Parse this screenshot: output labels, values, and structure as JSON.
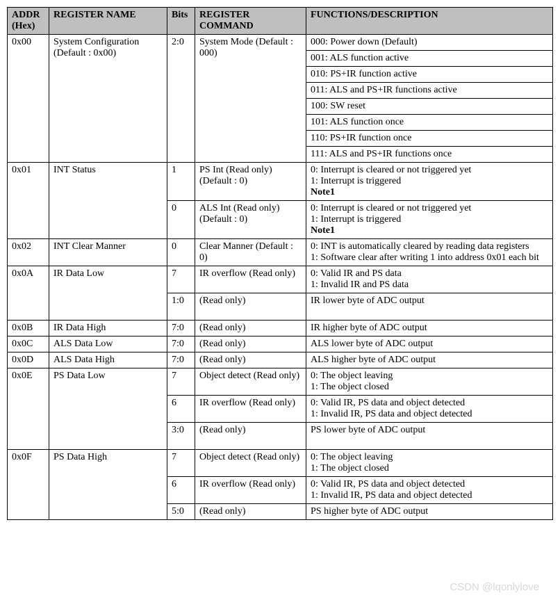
{
  "header": {
    "addr": "ADDR (Hex)",
    "name": "REGISTER NAME",
    "bits": "Bits",
    "cmd": "REGISTER COMMAND",
    "desc": "FUNCTIONS/DESCRIPTION"
  },
  "r00": {
    "addr": "0x00",
    "name": "System Configuration (Default : 0x00)",
    "bits": "2:0",
    "cmd": "System Mode (Default : 000)",
    "d0": "000: Power down (Default)",
    "d1": "001: ALS function active",
    "d2": "010: PS+IR function active",
    "d3": "011: ALS and PS+IR functions active",
    "d4": "100: SW reset",
    "d5": "101: ALS function once",
    "d6": "110: PS+IR function once",
    "d7": "111: ALS and PS+IR functions once"
  },
  "r01": {
    "addr": "0x01",
    "name": "INT Status",
    "b1_bits": "1",
    "b1_cmd": "PS Int (Read only) (Default : 0)",
    "b1_d0": "0: Interrupt is cleared or not triggered yet",
    "b1_d1": "1: Interrupt is triggered",
    "b1_note": "Note1",
    "b0_bits": "0",
    "b0_cmd": "ALS Int (Read only) (Default : 0)",
    "b0_d0": "0: Interrupt is cleared or not triggered yet",
    "b0_d1": "1: Interrupt is triggered",
    "b0_note": "Note1"
  },
  "r02": {
    "addr": "0x02",
    "name": "INT Clear Manner",
    "bits": "0",
    "cmd": "Clear Manner (Default : 0)",
    "d0": "0: INT is automatically cleared by reading data registers",
    "d1": "1: Software clear after writing 1 into address 0x01 each bit"
  },
  "r0a": {
    "addr": "0x0A",
    "name": "IR Data Low",
    "b7_bits": "7",
    "b7_cmd": "IR overflow (Read only)",
    "b7_d0": "0: Valid IR and PS data",
    "b7_d1": "1: Invalid IR and PS data",
    "b10_bits": "1:0",
    "b10_cmd": "(Read only)",
    "b10_desc": "IR lower byte of ADC output"
  },
  "r0b": {
    "addr": "0x0B",
    "name": "IR Data High",
    "bits": "7:0",
    "cmd": "(Read only)",
    "desc": "IR higher byte of ADC output"
  },
  "r0c": {
    "addr": "0x0C",
    "name": "ALS Data Low",
    "bits": "7:0",
    "cmd": "(Read only)",
    "desc": "ALS lower byte of ADC output"
  },
  "r0d": {
    "addr": "0x0D",
    "name": "ALS Data High",
    "bits": "7:0",
    "cmd": "(Read only)",
    "desc": "ALS higher byte of ADC output"
  },
  "r0e": {
    "addr": "0x0E",
    "name": "PS Data Low",
    "b7_bits": "7",
    "b7_cmd": "Object detect (Read only)",
    "b7_d0": "0: The object leaving",
    "b7_d1": "1: The object closed",
    "b6_bits": "6",
    "b6_cmd": "IR overflow (Read only)",
    "b6_d0": "0: Valid IR, PS data and object detected",
    "b6_d1": "1: Invalid IR, PS data and object detected",
    "b30_bits": "3:0",
    "b30_cmd": "(Read only)",
    "b30_desc": "PS lower byte of ADC output"
  },
  "r0f": {
    "addr": "0x0F",
    "name": "PS Data High",
    "b7_bits": "7",
    "b7_cmd": "Object detect (Read only)",
    "b7_d0": "0: The object leaving",
    "b7_d1": "1: The object closed",
    "b6_bits": "6",
    "b6_cmd": "IR overflow (Read only)",
    "b6_d0": "0: Valid IR, PS data and object detected",
    "b6_d1": "1: Invalid IR, PS data and object detected",
    "b50_bits": "5:0",
    "b50_cmd": "(Read only)",
    "b50_desc": "PS higher byte of ADC output"
  },
  "watermark": "CSDN @lqonlylove"
}
